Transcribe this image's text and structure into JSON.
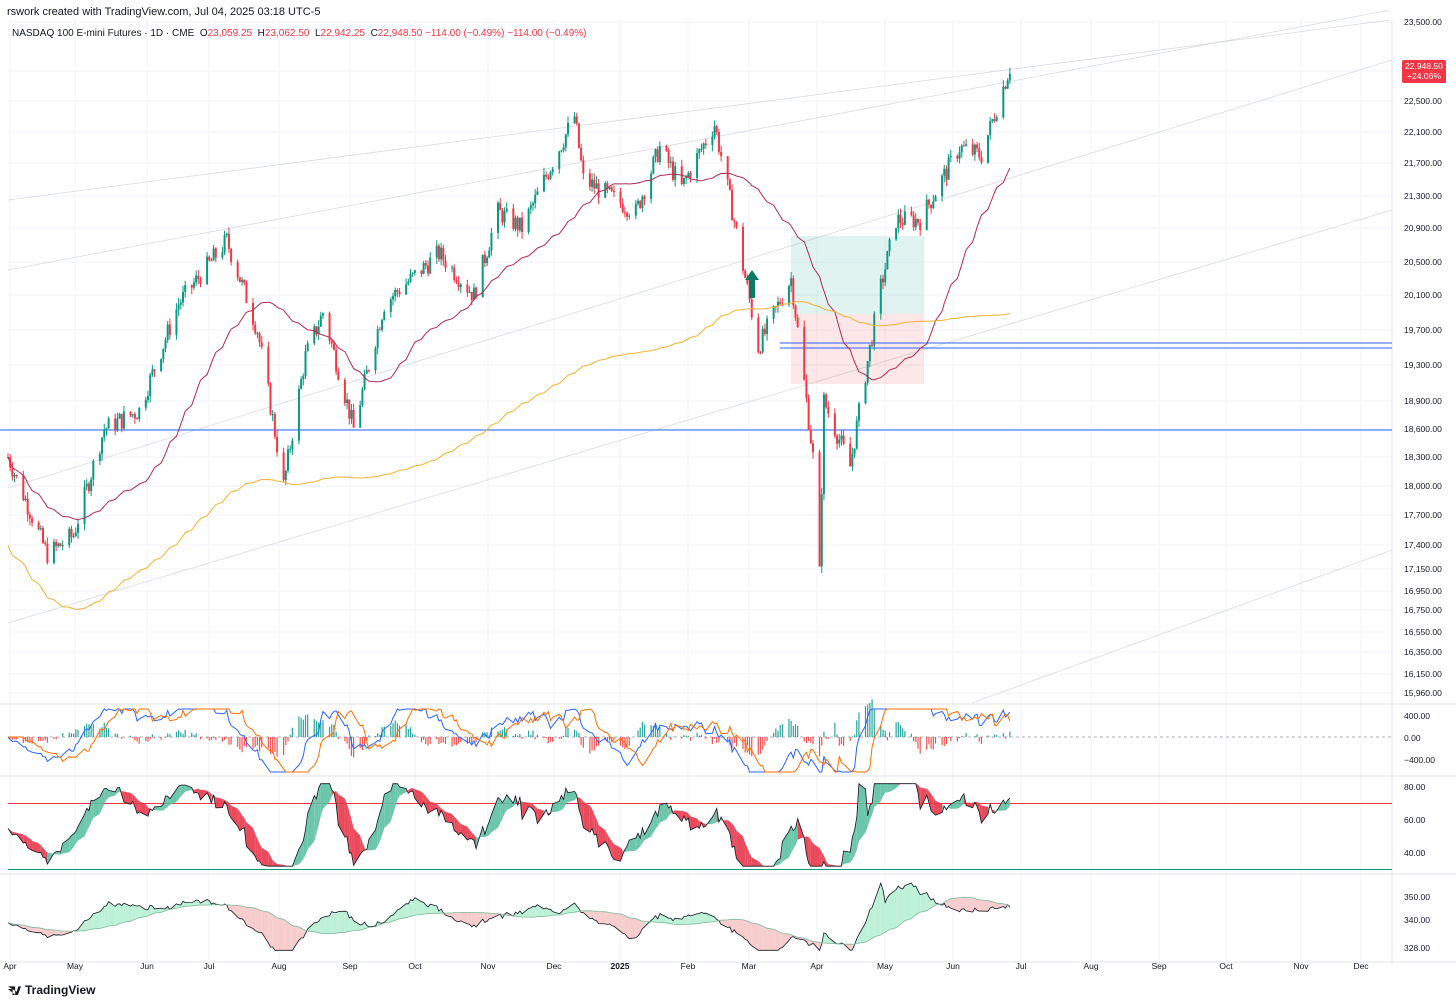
{
  "header": {
    "credit": "rswork created with TradingView.com, Jul 04, 2025 03:18 UTC-5",
    "symbol": "NASDAQ 100 E-mini Futures · 1D · CME",
    "ohlc": [
      {
        "k": "O",
        "v": "23,059.25"
      },
      {
        "k": "H",
        "v": "23,062.50"
      },
      {
        "k": "L",
        "v": "22,942.25"
      },
      {
        "k": "C",
        "v": "22,948.50"
      }
    ],
    "change1": "−114.00 (−0.49%)",
    "change2": "−114.00 (−0.49%)"
  },
  "price_tag": {
    "price": "22,948.50",
    "pct": "+24.06%"
  },
  "footer": {
    "brand": "TradingView"
  },
  "colors": {
    "up": "#089981",
    "down": "#f23645",
    "ma_fast": "#b02a55",
    "ma_slow": "#f0b232",
    "hline": "#2962ff"
  },
  "chart_data": {
    "type": "candlestick",
    "x_labels": [
      "Apr",
      "May",
      "Jun",
      "Jul",
      "Aug",
      "Sep",
      "Oct",
      "Nov",
      "Dec",
      "2025",
      "Feb",
      "Mar",
      "Apr",
      "May",
      "Jun",
      "Jul",
      "Aug",
      "Sep",
      "Oct",
      "Nov",
      "Dec"
    ],
    "price_axis": [
      "23,500.00",
      "22,900.00",
      "22,500.00",
      "22,100.00",
      "21,700.00",
      "21,300.00",
      "20,900.00",
      "20,500.00",
      "20,100.00",
      "19,700.00",
      "19,300.00",
      "18,900.00",
      "18,600.00",
      "18,300.00",
      "18,000.00",
      "17,700.00",
      "17,400.00",
      "17,150.00",
      "16,950.00",
      "16,750.00",
      "16,550.00",
      "16,350.00",
      "16,150.00",
      "15,960.00"
    ],
    "ylim": [
      15960,
      23500
    ],
    "last_price": 22948.5,
    "horizontal_levels": [
      19560,
      19500,
      18620
    ],
    "price_path": [
      {
        "d": "2024-04-01",
        "c": 18300
      },
      {
        "d": "2024-04-19",
        "c": 17300
      },
      {
        "d": "2024-05-01",
        "c": 17500
      },
      {
        "d": "2024-05-15",
        "c": 18600
      },
      {
        "d": "2024-05-31",
        "c": 18800
      },
      {
        "d": "2024-06-18",
        "c": 20000
      },
      {
        "d": "2024-07-10",
        "c": 20750
      },
      {
        "d": "2024-07-24",
        "c": 19700
      },
      {
        "d": "2024-08-05",
        "c": 18000
      },
      {
        "d": "2024-08-15",
        "c": 19400
      },
      {
        "d": "2024-08-23",
        "c": 19900
      },
      {
        "d": "2024-09-06",
        "c": 18600
      },
      {
        "d": "2024-09-20",
        "c": 20000
      },
      {
        "d": "2024-10-15",
        "c": 20600
      },
      {
        "d": "2024-10-31",
        "c": 20100
      },
      {
        "d": "2024-11-11",
        "c": 21100
      },
      {
        "d": "2024-11-22",
        "c": 20900
      },
      {
        "d": "2024-12-16",
        "c": 22300
      },
      {
        "d": "2024-12-20",
        "c": 21500
      },
      {
        "d": "2025-01-13",
        "c": 21100
      },
      {
        "d": "2025-01-24",
        "c": 21900
      },
      {
        "d": "2025-02-03",
        "c": 21400
      },
      {
        "d": "2025-02-18",
        "c": 22200
      },
      {
        "d": "2025-03-10",
        "c": 19500
      },
      {
        "d": "2025-03-25",
        "c": 20300
      },
      {
        "d": "2025-04-04",
        "c": 18300
      },
      {
        "d": "2025-04-07",
        "c": 17100
      },
      {
        "d": "2025-04-09",
        "c": 18900
      },
      {
        "d": "2025-04-21",
        "c": 18200
      },
      {
        "d": "2025-05-05",
        "c": 20200
      },
      {
        "d": "2025-05-12",
        "c": 21000
      },
      {
        "d": "2025-05-23",
        "c": 21000
      },
      {
        "d": "2025-06-10",
        "c": 21900
      },
      {
        "d": "2025-06-20",
        "c": 21800
      },
      {
        "d": "2025-07-03",
        "c": 22948.5
      }
    ],
    "macd_axis": [
      "400.00",
      "0.00",
      "−400.00"
    ],
    "rsi_axis": [
      "80.00",
      "60.00",
      "40.00"
    ],
    "rsi_levels": [
      70,
      30
    ],
    "breadth_axis": [
      "350.00",
      "340.00",
      "328.00"
    ]
  }
}
